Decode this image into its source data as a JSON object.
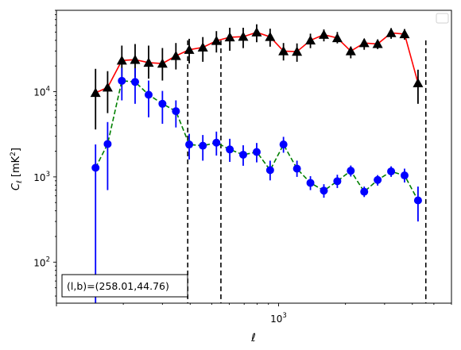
{
  "chart_data": {
    "type": "scatter",
    "xlabel": "ℓ",
    "ylabel_main": "C",
    "ylabel_sub": "ℓ",
    "ylabel_unit": "[mK",
    "ylabel_unit_sup": "2",
    "ylabel_unit_close": "]",
    "xscale": "log",
    "yscale": "log",
    "xlim": [
      100,
      6000
    ],
    "ylim": [
      33,
      90000
    ],
    "x_tick_labels": [
      {
        "base": "10",
        "exp": "3",
        "value": 1000
      }
    ],
    "y_tick_labels": [
      {
        "base": "10",
        "exp": "2",
        "value": 100
      },
      {
        "base": "10",
        "exp": "3",
        "value": 1000
      },
      {
        "base": "10",
        "exp": "4",
        "value": 10000
      }
    ],
    "annotation": "(l,b)=(258.01,44.76)",
    "legend": {
      "placement": "top-right",
      "entries": []
    },
    "vlines": [
      390,
      550,
      4600
    ],
    "series": [
      {
        "marker": "triangle",
        "line_color": "#ff0000",
        "marker_color": "#000000",
        "errorbar_color": "#000000",
        "line_style": "solid",
        "points": [
          {
            "x": 150,
            "y": 9700,
            "lo": 3600,
            "hi": 18500
          },
          {
            "x": 170,
            "y": 11200,
            "lo": 5600,
            "hi": 17400
          },
          {
            "x": 197,
            "y": 23200,
            "lo": 14200,
            "hi": 34700
          },
          {
            "x": 226,
            "y": 23700,
            "lo": 14800,
            "hi": 36200
          },
          {
            "x": 260,
            "y": 21900,
            "lo": 14200,
            "hi": 34700
          },
          {
            "x": 300,
            "y": 21400,
            "lo": 13500,
            "hi": 32500
          },
          {
            "x": 345,
            "y": 26300,
            "lo": 18200,
            "hi": 37200
          },
          {
            "x": 396,
            "y": 31000,
            "lo": 21400,
            "hi": 41700
          },
          {
            "x": 456,
            "y": 33100,
            "lo": 22400,
            "hi": 43700
          },
          {
            "x": 525,
            "y": 39500,
            "lo": 28800,
            "hi": 51300
          },
          {
            "x": 603,
            "y": 43500,
            "lo": 30200,
            "hi": 56200
          },
          {
            "x": 693,
            "y": 44200,
            "lo": 32400,
            "hi": 56200
          },
          {
            "x": 797,
            "y": 49700,
            "lo": 38000,
            "hi": 61700
          },
          {
            "x": 916,
            "y": 43900,
            "lo": 33700,
            "hi": 54800
          },
          {
            "x": 1052,
            "y": 29900,
            "lo": 23200,
            "hi": 37200
          },
          {
            "x": 1210,
            "y": 29500,
            "lo": 22400,
            "hi": 36800
          },
          {
            "x": 1391,
            "y": 40000,
            "lo": 32400,
            "hi": 47900
          },
          {
            "x": 1599,
            "y": 46600,
            "lo": 38900,
            "hi": 53700
          },
          {
            "x": 1838,
            "y": 42600,
            "lo": 36800,
            "hi": 50100
          },
          {
            "x": 2113,
            "y": 29900,
            "lo": 24600,
            "hi": 33700
          },
          {
            "x": 2429,
            "y": 37200,
            "lo": 31000,
            "hi": 41700
          },
          {
            "x": 2792,
            "y": 36300,
            "lo": 31600,
            "hi": 40700
          },
          {
            "x": 3210,
            "y": 48800,
            "lo": 41700,
            "hi": 55600
          },
          {
            "x": 3690,
            "y": 47400,
            "lo": 40700,
            "hi": 54300
          },
          {
            "x": 4242,
            "y": 12600,
            "lo": 7200,
            "hi": 18100
          }
        ]
      },
      {
        "marker": "circle",
        "line_color": "#008000",
        "marker_color": "#0000ff",
        "errorbar_color": "#0000ff",
        "line_style": "dashed",
        "points": [
          {
            "x": 150,
            "y": 1280,
            "lo": 33,
            "hi": 2400
          },
          {
            "x": 170,
            "y": 2430,
            "lo": 700,
            "hi": 4400
          },
          {
            "x": 197,
            "y": 13400,
            "lo": 7900,
            "hi": 19000
          },
          {
            "x": 226,
            "y": 13000,
            "lo": 7200,
            "hi": 18800
          },
          {
            "x": 260,
            "y": 9200,
            "lo": 5000,
            "hi": 13500
          },
          {
            "x": 300,
            "y": 7200,
            "lo": 4200,
            "hi": 10200
          },
          {
            "x": 345,
            "y": 5900,
            "lo": 3800,
            "hi": 7900
          },
          {
            "x": 396,
            "y": 2400,
            "lo": 1600,
            "hi": 3200
          },
          {
            "x": 456,
            "y": 2320,
            "lo": 1550,
            "hi": 3100
          },
          {
            "x": 525,
            "y": 2520,
            "lo": 1780,
            "hi": 3400
          },
          {
            "x": 603,
            "y": 2100,
            "lo": 1500,
            "hi": 2800
          },
          {
            "x": 693,
            "y": 1820,
            "lo": 1350,
            "hi": 2350
          },
          {
            "x": 797,
            "y": 1960,
            "lo": 1480,
            "hi": 2500
          },
          {
            "x": 916,
            "y": 1200,
            "lo": 910,
            "hi": 1550
          },
          {
            "x": 1052,
            "y": 2400,
            "lo": 1920,
            "hi": 2950
          },
          {
            "x": 1210,
            "y": 1250,
            "lo": 1000,
            "hi": 1550
          },
          {
            "x": 1391,
            "y": 850,
            "lo": 700,
            "hi": 1020
          },
          {
            "x": 1599,
            "y": 690,
            "lo": 570,
            "hi": 820
          },
          {
            "x": 1838,
            "y": 890,
            "lo": 740,
            "hi": 1060
          },
          {
            "x": 2113,
            "y": 1180,
            "lo": 1010,
            "hi": 1360
          },
          {
            "x": 2429,
            "y": 670,
            "lo": 580,
            "hi": 770
          },
          {
            "x": 2792,
            "y": 920,
            "lo": 790,
            "hi": 1050
          },
          {
            "x": 3210,
            "y": 1160,
            "lo": 1000,
            "hi": 1330
          },
          {
            "x": 3690,
            "y": 1040,
            "lo": 860,
            "hi": 1250
          },
          {
            "x": 4242,
            "y": 530,
            "lo": 300,
            "hi": 770
          }
        ]
      }
    ]
  }
}
